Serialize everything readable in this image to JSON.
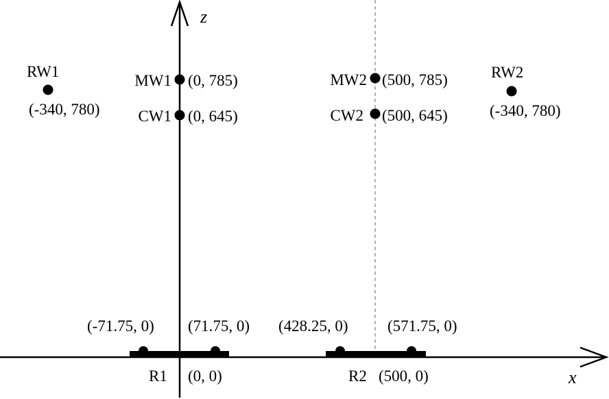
{
  "axes": {
    "x_label": "x",
    "z_label": "z"
  },
  "points": [
    {
      "name": "RW1",
      "coord": "(-340, 780)"
    },
    {
      "name": "MW1",
      "coord": "(0, 785)"
    },
    {
      "name": "CW1",
      "coord": "(0, 645)"
    },
    {
      "name": "MW2",
      "coord": "(500, 785)"
    },
    {
      "name": "CW2",
      "coord": "(500, 645)"
    },
    {
      "name": "RW2",
      "coord": "(-340, 780)"
    }
  ],
  "rails": [
    {
      "name": "R1",
      "center": "(0, 0)",
      "left": "(-71.75, 0)",
      "right": "(71.75, 0)"
    },
    {
      "name": "R2",
      "center": "(500, 0)",
      "left": "(428.25, 0)",
      "right": "(571.75, 0)"
    }
  ],
  "colors": {
    "ink": "#000000",
    "dashed_line": "#888888"
  }
}
